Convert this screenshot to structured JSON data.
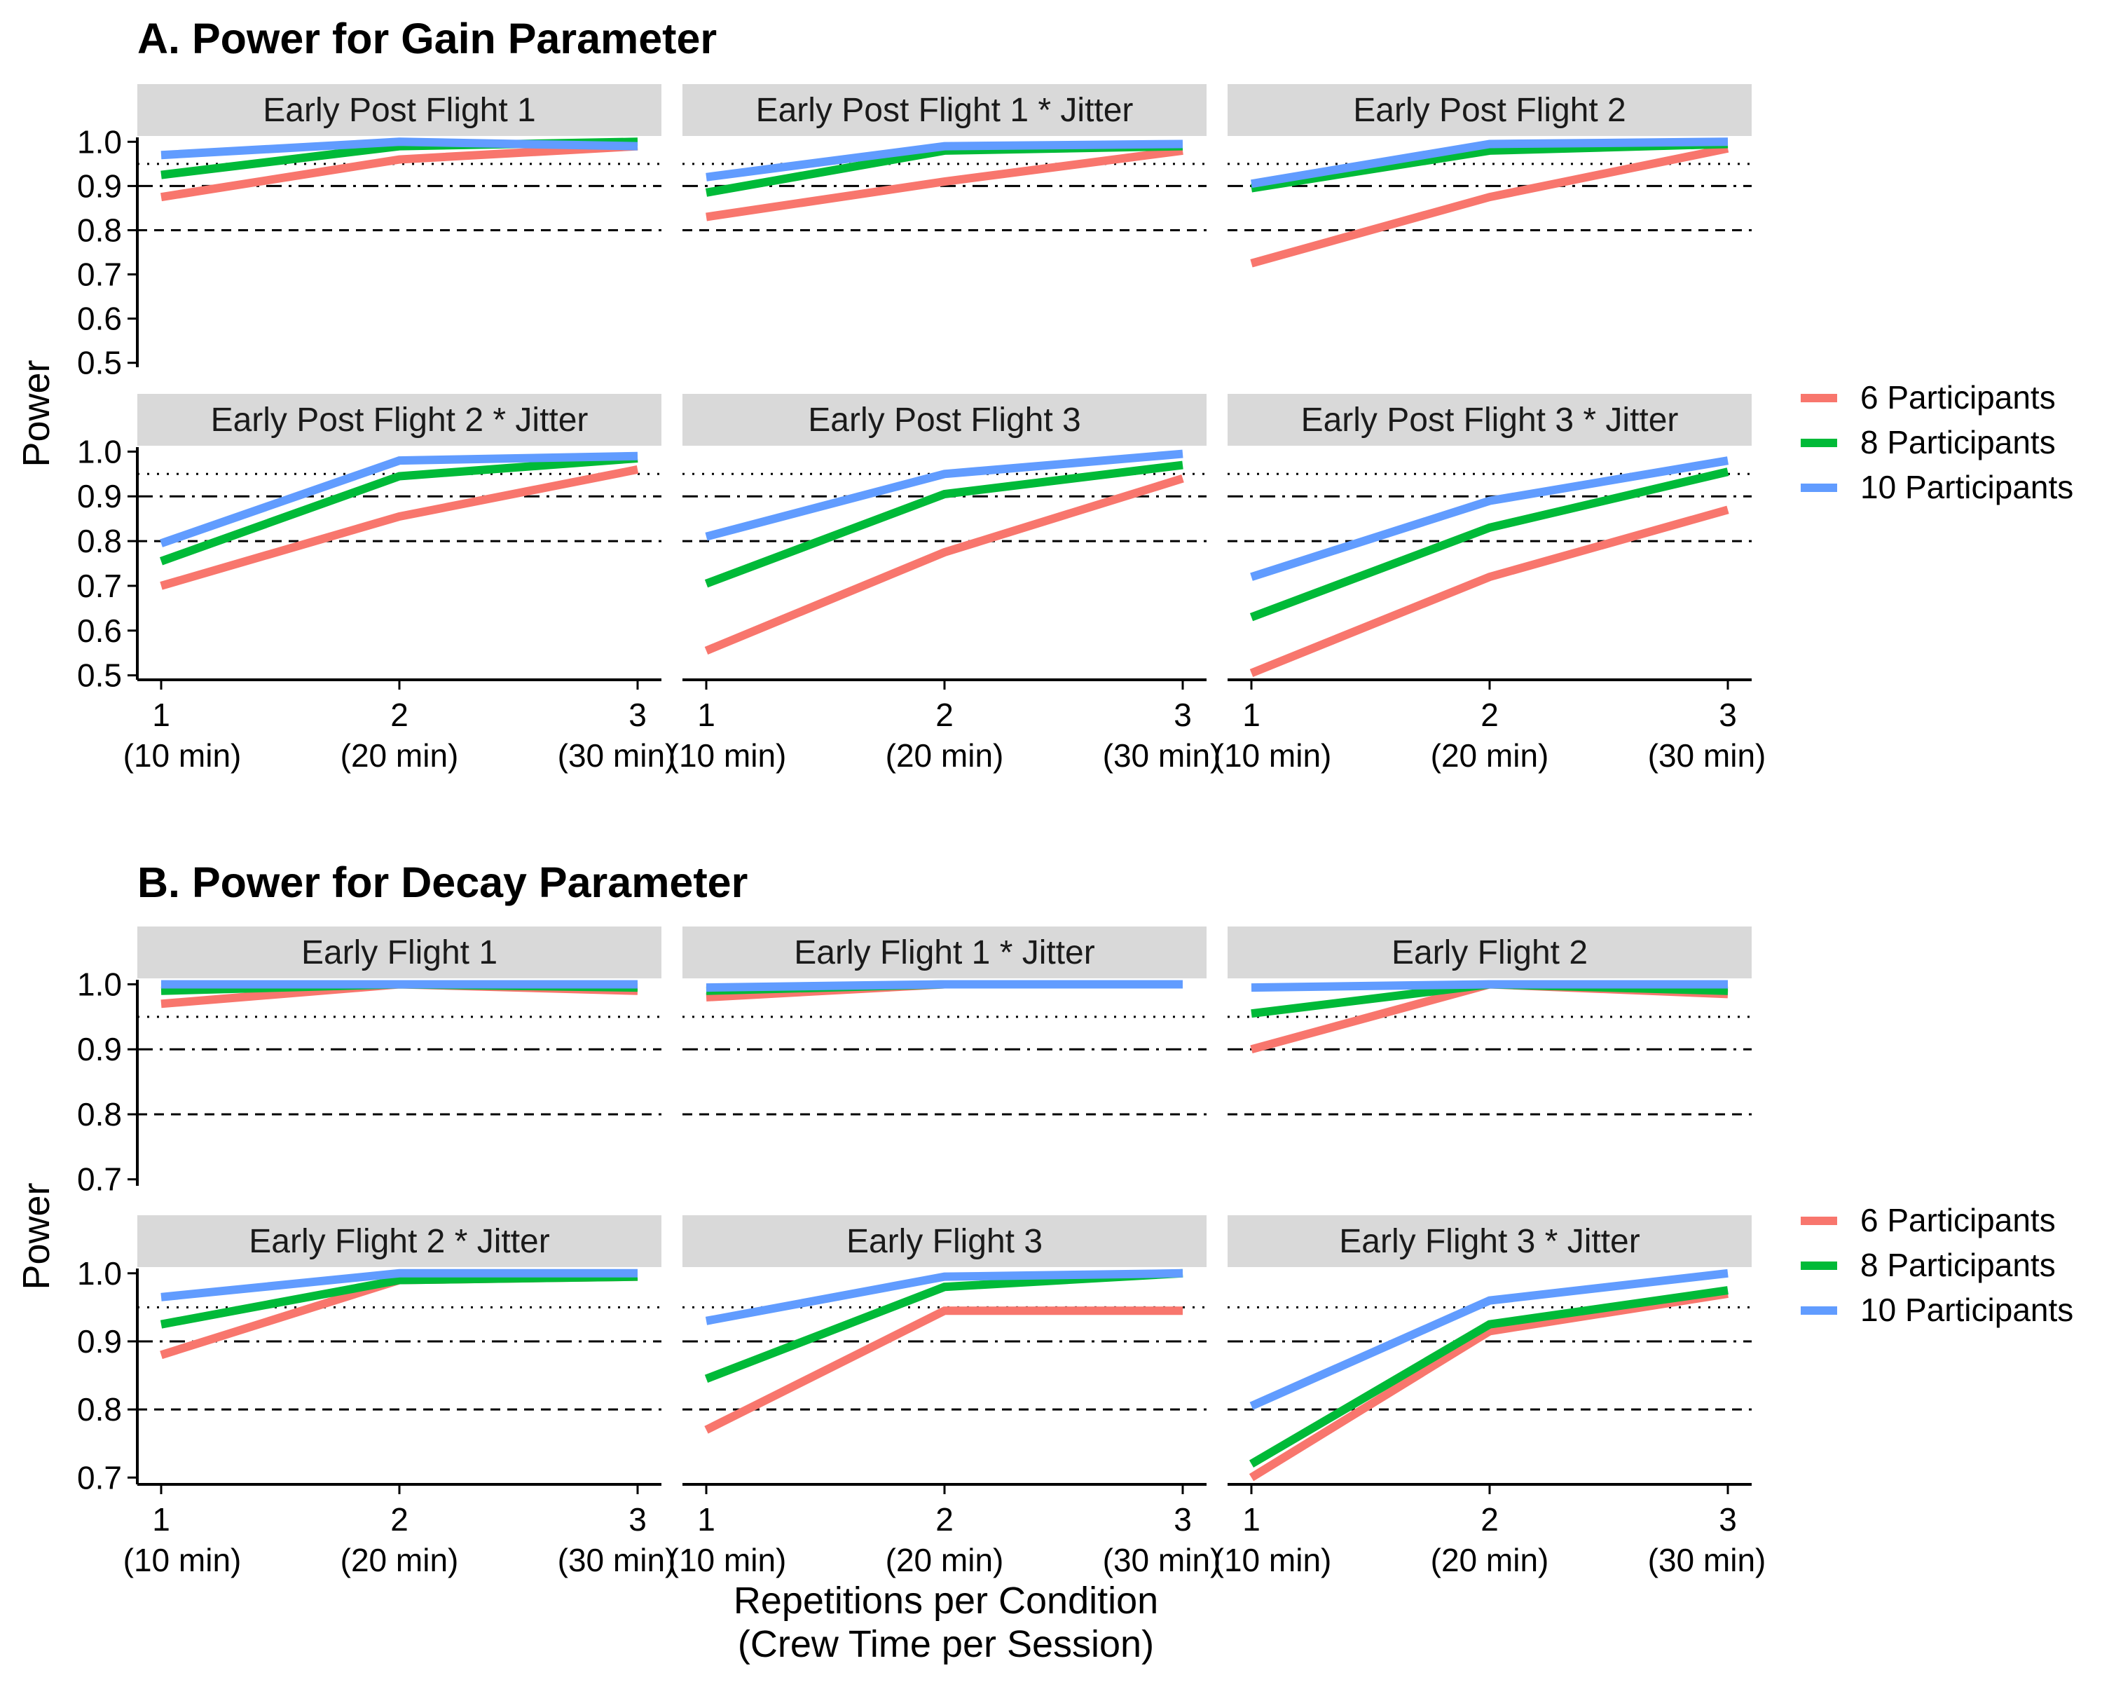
{
  "figure": {
    "xlabel_lines": [
      "Repetitions per Condition",
      "(Crew Time per Session)"
    ],
    "x_tick_labels": [
      [
        "1",
        "(10 min)"
      ],
      [
        "2",
        "(20 min)"
      ],
      [
        "3",
        "(30 min)"
      ]
    ],
    "reference_lines": [
      {
        "value": 0.95,
        "style": "dotted"
      },
      {
        "value": 0.9,
        "style": "dashdot"
      },
      {
        "value": 0.8,
        "style": "dashed"
      }
    ],
    "series_colors": {
      "6 Participants": "#F8766D",
      "8 Participants": "#00BA38",
      "10 Participants": "#619CFF"
    }
  },
  "sections": [
    {
      "title": "A. Power for Gain Parameter",
      "ylabel": "Power",
      "legend": [
        "6 Participants",
        "8 Participants",
        "10 Participants"
      ],
      "y_ticks": [
        {
          "value": 0.5,
          "label": "0.5"
        },
        {
          "value": 0.6,
          "label": "0.6"
        },
        {
          "value": 0.7,
          "label": "0.7"
        },
        {
          "value": 0.8,
          "label": "0.8"
        },
        {
          "value": 0.9,
          "label": "0.9"
        },
        {
          "value": 1.0,
          "label": "1.0"
        }
      ]
    },
    {
      "title": "B. Power for Decay Parameter",
      "ylabel": "Power",
      "legend": [
        "6 Participants",
        "8 Participants",
        "10 Participants"
      ],
      "y_ticks": [
        {
          "value": 0.7,
          "label": "0.7"
        },
        {
          "value": 0.8,
          "label": "0.8"
        },
        {
          "value": 0.9,
          "label": "0.9"
        },
        {
          "value": 1.0,
          "label": "1.0"
        }
      ]
    }
  ],
  "chart_data": [
    {
      "type": "line",
      "title": "A. Power for Gain Parameter",
      "xlabel": "Repetitions per Condition (Crew Time per Session)",
      "ylabel": "Power",
      "x": [
        1,
        2,
        3
      ],
      "ylim": [
        0.5,
        1.0
      ],
      "legend_position": "right",
      "grid": false,
      "panels": [
        {
          "title": "Early Post Flight 1",
          "series": [
            {
              "name": "6 Participants",
              "values": [
                0.875,
                0.96,
                0.99
              ]
            },
            {
              "name": "8 Participants",
              "values": [
                0.925,
                0.99,
                1.0
              ]
            },
            {
              "name": "10 Participants",
              "values": [
                0.97,
                1.0,
                0.99
              ]
            }
          ]
        },
        {
          "title": "Early Post Flight 1 * Jitter",
          "series": [
            {
              "name": "6 Participants",
              "values": [
                0.83,
                0.91,
                0.98
              ]
            },
            {
              "name": "8 Participants",
              "values": [
                0.885,
                0.98,
                0.99
              ]
            },
            {
              "name": "10 Participants",
              "values": [
                0.92,
                0.99,
                0.995
              ]
            }
          ]
        },
        {
          "title": "Early Post Flight 2",
          "series": [
            {
              "name": "6 Participants",
              "values": [
                0.725,
                0.875,
                0.985
              ]
            },
            {
              "name": "8 Participants",
              "values": [
                0.895,
                0.98,
                0.995
              ]
            },
            {
              "name": "10 Participants",
              "values": [
                0.905,
                0.995,
                1.0
              ]
            }
          ]
        },
        {
          "title": "Early Post Flight 2 * Jitter",
          "series": [
            {
              "name": "6 Participants",
              "values": [
                0.7,
                0.855,
                0.96
              ]
            },
            {
              "name": "8 Participants",
              "values": [
                0.755,
                0.945,
                0.985
              ]
            },
            {
              "name": "10 Participants",
              "values": [
                0.795,
                0.98,
                0.99
              ]
            }
          ]
        },
        {
          "title": "Early Post Flight 3",
          "series": [
            {
              "name": "6 Participants",
              "values": [
                0.555,
                0.775,
                0.94
              ]
            },
            {
              "name": "8 Participants",
              "values": [
                0.705,
                0.905,
                0.97
              ]
            },
            {
              "name": "10 Participants",
              "values": [
                0.81,
                0.95,
                0.995
              ]
            }
          ]
        },
        {
          "title": "Early Post Flight 3 * Jitter",
          "series": [
            {
              "name": "6 Participants",
              "values": [
                0.505,
                0.72,
                0.87
              ]
            },
            {
              "name": "8 Participants",
              "values": [
                0.63,
                0.83,
                0.955
              ]
            },
            {
              "name": "10 Participants",
              "values": [
                0.72,
                0.89,
                0.98
              ]
            }
          ]
        }
      ]
    },
    {
      "type": "line",
      "title": "B. Power for Decay Parameter",
      "xlabel": "Repetitions per Condition (Crew Time per Session)",
      "ylabel": "Power",
      "x": [
        1,
        2,
        3
      ],
      "ylim": [
        0.7,
        1.0
      ],
      "legend_position": "right",
      "grid": false,
      "panels": [
        {
          "title": "Early Flight 1",
          "series": [
            {
              "name": "6 Participants",
              "values": [
                0.97,
                1.0,
                0.99
              ]
            },
            {
              "name": "8 Participants",
              "values": [
                0.99,
                1.0,
                0.995
              ]
            },
            {
              "name": "10 Participants",
              "values": [
                1.0,
                1.0,
                1.0
              ]
            }
          ]
        },
        {
          "title": "Early Flight 1 * Jitter",
          "series": [
            {
              "name": "6 Participants",
              "values": [
                0.98,
                1.0,
                1.0
              ]
            },
            {
              "name": "8 Participants",
              "values": [
                0.99,
                1.0,
                1.0
              ]
            },
            {
              "name": "10 Participants",
              "values": [
                0.995,
                1.0,
                1.0
              ]
            }
          ]
        },
        {
          "title": "Early Flight 2",
          "series": [
            {
              "name": "6 Participants",
              "values": [
                0.9,
                1.0,
                0.985
              ]
            },
            {
              "name": "8 Participants",
              "values": [
                0.955,
                1.0,
                0.99
              ]
            },
            {
              "name": "10 Participants",
              "values": [
                0.995,
                1.0,
                1.0
              ]
            }
          ]
        },
        {
          "title": "Early Flight 2 * Jitter",
          "series": [
            {
              "name": "6 Participants",
              "values": [
                0.88,
                0.99,
                0.995
              ]
            },
            {
              "name": "8 Participants",
              "values": [
                0.925,
                0.99,
                0.995
              ]
            },
            {
              "name": "10 Participants",
              "values": [
                0.965,
                1.0,
                1.0
              ]
            }
          ]
        },
        {
          "title": "Early Flight 3",
          "series": [
            {
              "name": "6 Participants",
              "values": [
                0.77,
                0.945,
                0.945
              ]
            },
            {
              "name": "8 Participants",
              "values": [
                0.845,
                0.98,
                1.0
              ]
            },
            {
              "name": "10 Participants",
              "values": [
                0.93,
                0.995,
                1.0
              ]
            }
          ]
        },
        {
          "title": "Early Flight 3 * Jitter",
          "series": [
            {
              "name": "6 Participants",
              "values": [
                0.7,
                0.915,
                0.97
              ]
            },
            {
              "name": "8 Participants",
              "values": [
                0.72,
                0.925,
                0.975
              ]
            },
            {
              "name": "10 Participants",
              "values": [
                0.805,
                0.96,
                1.0
              ]
            }
          ]
        }
      ]
    }
  ]
}
